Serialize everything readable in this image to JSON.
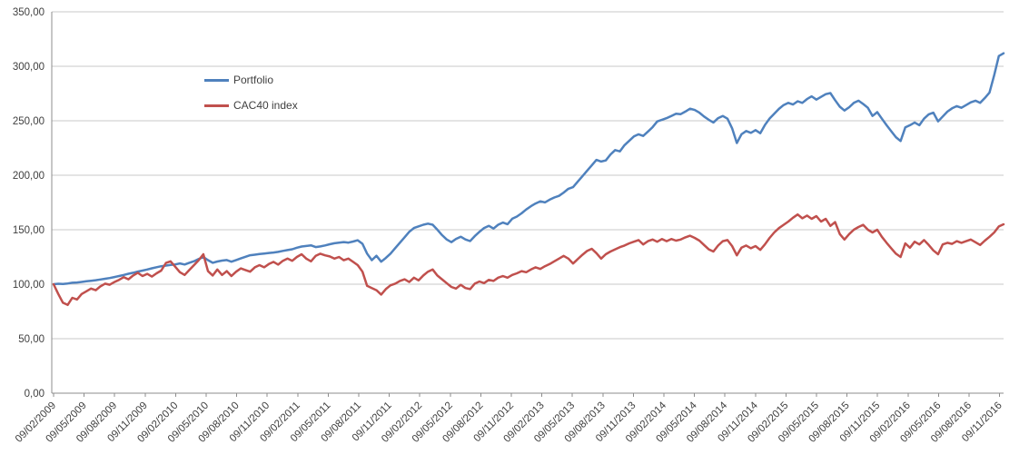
{
  "chart_data": {
    "type": "line",
    "title": "",
    "xlabel": "",
    "ylabel": "",
    "grid": true,
    "legend_position": "inside-top-left",
    "weeks_total": 406,
    "x_step_weeks": 2,
    "x_tick_interval_weeks": 13.042,
    "y_axis": {
      "min": 0,
      "max": 350,
      "step": 50,
      "tick_labels": [
        "0,00",
        "50,00",
        "100,00",
        "150,00",
        "200,00",
        "250,00",
        "300,00",
        "350,00"
      ]
    },
    "x_axis": {
      "tick_labels": [
        "09/02/2009",
        "09/05/2009",
        "09/08/2009",
        "09/11/2009",
        "09/02/2010",
        "09/05/2010",
        "09/08/2010",
        "09/11/2010",
        "09/02/2011",
        "09/05/2011",
        "09/08/2011",
        "09/11/2011",
        "09/02/2012",
        "09/05/2012",
        "09/08/2012",
        "09/11/2012",
        "09/02/2013",
        "09/05/2013",
        "09/08/2013",
        "09/11/2013",
        "09/02/2014",
        "09/05/2014",
        "09/08/2014",
        "09/11/2014",
        "09/02/2015",
        "09/05/2015",
        "09/08/2015",
        "09/11/2015",
        "09/02/2016",
        "09/05/2016",
        "09/08/2016",
        "09/11/2016"
      ]
    },
    "series": [
      {
        "name": "Portfolio",
        "color": "#4F81BD",
        "values": [
          100,
          100.4,
          100.2,
          100.7,
          101.3,
          101.6,
          102.1,
          102.7,
          103.2,
          103.7,
          104.3,
          105,
          105.7,
          106.6,
          107.5,
          108.5,
          109.6,
          110.5,
          111.6,
          112.5,
          113.5,
          114.6,
          115.6,
          116.5,
          117.1,
          117.7,
          118.2,
          119.1,
          118.1,
          119.7,
          121.1,
          123.1,
          124.9,
          122.1,
          119.7,
          120.8,
          121.7,
          122.2,
          120.7,
          122.2,
          123.7,
          125.2,
          126.6,
          127.1,
          127.7,
          128.2,
          128.7,
          129.1,
          129.7,
          130.6,
          131.3,
          132.1,
          133.5,
          134.6,
          135.1,
          135.7,
          134.1,
          134.7,
          135.6,
          136.7,
          137.6,
          138.1,
          138.7,
          138.2,
          139.2,
          140.3,
          137.1,
          128.1,
          122.1,
          126.1,
          120.7,
          124.1,
          128.1,
          133.1,
          138.1,
          143.1,
          148.1,
          151.6,
          153.1,
          154.6,
          155.6,
          154.6,
          150.1,
          145.1,
          141.1,
          138.6,
          141.6,
          143.6,
          141.1,
          139.6,
          144.1,
          148.1,
          151.6,
          153.6,
          151.1,
          154.6,
          156.6,
          155.1,
          160.1,
          162.1,
          165.1,
          168.6,
          171.6,
          174.1,
          176.1,
          175.1,
          177.6,
          179.6,
          181.1,
          184.1,
          187.6,
          189.1,
          194.1,
          199.1,
          204.1,
          209.1,
          214.1,
          212.6,
          213.6,
          219.1,
          223.1,
          221.9,
          227.6,
          231.6,
          235.6,
          237.6,
          236.1,
          240.1,
          244.1,
          249.4,
          250.9,
          252.4,
          254.4,
          256.4,
          256.1,
          258.4,
          261.1,
          259.9,
          257.4,
          253.9,
          250.9,
          248.4,
          252.4,
          254.4,
          251.9,
          243.1,
          229.6,
          237.6,
          240.6,
          238.9,
          241.4,
          238.6,
          246.1,
          252.1,
          256.4,
          260.9,
          264.4,
          266.4,
          264.9,
          267.9,
          266.4,
          269.9,
          272.4,
          269.4,
          271.9,
          274.4,
          275.4,
          268.9,
          262.9,
          259.4,
          262.4,
          266.4,
          268.4,
          265.4,
          261.9,
          254.4,
          257.9,
          251.9,
          245.9,
          240.4,
          234.9,
          231.4,
          243.9,
          245.9,
          248.4,
          245.9,
          251.9,
          255.9,
          257.4,
          249.4,
          253.9,
          258.4,
          261.4,
          263.4,
          261.9,
          264.4,
          266.9,
          268.4,
          266.4,
          270.9,
          275.9,
          291.9,
          309.4,
          311.9
        ]
      },
      {
        "name": "CAC40 index",
        "color": "#C0504D",
        "values": [
          100,
          91,
          83,
          81,
          87.5,
          86,
          91,
          93.5,
          96,
          94.5,
          98,
          100.5,
          99.5,
          102,
          104,
          106.5,
          104.5,
          108,
          110.5,
          107.5,
          109.5,
          107,
          110,
          112.5,
          119.5,
          121,
          116,
          111,
          108.5,
          113,
          117.5,
          122,
          127.5,
          112,
          108,
          113.5,
          108.5,
          112,
          107.5,
          111.5,
          114.5,
          113,
          111.5,
          115.5,
          117.5,
          115.5,
          118.5,
          120.5,
          118,
          121.5,
          123.5,
          121.5,
          125,
          127.5,
          123.5,
          121,
          126,
          128,
          126.5,
          125.5,
          123.5,
          125,
          122,
          123.5,
          120.5,
          117.5,
          111.5,
          98.5,
          96.5,
          94.5,
          90.5,
          95.5,
          99,
          100.5,
          103,
          104.5,
          102,
          106,
          103.5,
          108,
          111.5,
          113.5,
          108,
          104.5,
          101,
          97.5,
          96,
          99.5,
          96.5,
          95.5,
          100.5,
          102.5,
          101,
          104,
          103,
          106,
          107.5,
          106,
          108.5,
          110,
          112,
          111,
          113.5,
          115.5,
          114,
          116.5,
          118.5,
          121,
          123.5,
          126,
          123.5,
          119,
          123,
          127,
          130.5,
          132.5,
          128.5,
          123.5,
          127.5,
          130,
          132,
          134,
          135.5,
          137.5,
          139,
          140.5,
          136.5,
          139.5,
          141,
          139,
          141.5,
          139.5,
          141.5,
          140,
          141,
          143,
          144.5,
          142.5,
          140,
          136,
          132,
          130,
          135.5,
          139.5,
          140.5,
          135,
          126.5,
          133.5,
          135.5,
          133,
          135,
          131.5,
          136.5,
          142.5,
          147.5,
          151.5,
          154.5,
          157.5,
          161,
          164,
          160.5,
          163,
          160,
          162.5,
          157.5,
          160,
          153.5,
          157,
          146,
          141,
          146,
          150,
          152.5,
          154.5,
          150,
          147.5,
          150,
          143.5,
          138,
          133,
          128,
          125,
          137.5,
          133.5,
          139,
          136.5,
          140.5,
          136,
          131,
          127.5,
          136.5,
          138,
          137,
          139.5,
          138,
          139.5,
          141,
          138.5,
          136,
          140,
          143.5,
          147.5,
          153,
          155
        ]
      }
    ]
  },
  "legend": {
    "items": [
      {
        "label": "Portfolio",
        "color": "#4F81BD"
      },
      {
        "label": "CAC40 index",
        "color": "#C0504D"
      }
    ]
  },
  "colors": {
    "background": "#FFFFFF",
    "gridline": "#C9C9C9",
    "axis": "#8C8C8C",
    "tick_label": "#3F3F3F"
  }
}
